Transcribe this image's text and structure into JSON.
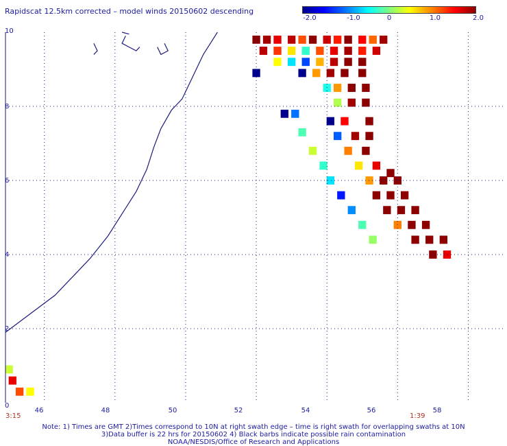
{
  "title": "Rapidscat 12.5km corrected – model winds 20150602 descending",
  "colorbar": {
    "labels": [
      "-2.0",
      "-1.0",
      "0",
      "1.0",
      "2.0"
    ],
    "min": -2.0,
    "max": 2.0
  },
  "axes": {
    "x_labels": [
      "46",
      "48",
      "50",
      "52",
      "54",
      "56",
      "58"
    ],
    "y_labels": [
      "0",
      "2",
      "4",
      "6",
      "8",
      "10"
    ],
    "x_range": [
      44.9,
      59.0
    ],
    "y_range": [
      0,
      10
    ]
  },
  "times": {
    "left": "3:15",
    "right": "1:39"
  },
  "notes": [
    "Note: 1) Times are GMT 2)Times correspond to 10N at right swath edge – time is right swath for overlapping swaths at 10N",
    "3)Data buffer is 22 hrs for 20150602 4) Black barbs indicate possible rain contamination",
    "NOAA/NESDIS/Office of Research and Applications"
  ],
  "colors": {
    "text": "#1a1aa0",
    "coast": "#1a1a80",
    "time": "#b03020"
  },
  "map_data": {
    "description_units": "lon (E), lat (N), value = wind speed difference",
    "swath_cells": [
      {
        "lon": 52.0,
        "lat": 9.8,
        "v": 2.0
      },
      {
        "lon": 52.3,
        "lat": 9.8,
        "v": 1.9
      },
      {
        "lon": 52.6,
        "lat": 9.8,
        "v": 1.6
      },
      {
        "lon": 53.0,
        "lat": 9.8,
        "v": 1.8
      },
      {
        "lon": 53.3,
        "lat": 9.8,
        "v": 1.2
      },
      {
        "lon": 53.6,
        "lat": 9.8,
        "v": 2.0
      },
      {
        "lon": 54.0,
        "lat": 9.8,
        "v": 1.7
      },
      {
        "lon": 54.3,
        "lat": 9.8,
        "v": 1.4
      },
      {
        "lon": 54.6,
        "lat": 9.8,
        "v": 2.0
      },
      {
        "lon": 55.0,
        "lat": 9.8,
        "v": 1.5
      },
      {
        "lon": 55.3,
        "lat": 9.8,
        "v": 1.1
      },
      {
        "lon": 55.6,
        "lat": 9.8,
        "v": 1.9
      },
      {
        "lon": 52.2,
        "lat": 9.5,
        "v": 1.8
      },
      {
        "lon": 52.6,
        "lat": 9.5,
        "v": 1.3
      },
      {
        "lon": 53.0,
        "lat": 9.5,
        "v": 0.6
      },
      {
        "lon": 53.4,
        "lat": 9.5,
        "v": -0.3
      },
      {
        "lon": 53.8,
        "lat": 9.5,
        "v": 1.2
      },
      {
        "lon": 54.2,
        "lat": 9.5,
        "v": 1.6
      },
      {
        "lon": 54.6,
        "lat": 9.5,
        "v": 1.9
      },
      {
        "lon": 55.0,
        "lat": 9.5,
        "v": 1.4
      },
      {
        "lon": 55.4,
        "lat": 9.5,
        "v": 1.7
      },
      {
        "lon": 52.6,
        "lat": 9.2,
        "v": 0.5
      },
      {
        "lon": 53.0,
        "lat": 9.2,
        "v": -0.6
      },
      {
        "lon": 53.4,
        "lat": 9.2,
        "v": -1.2
      },
      {
        "lon": 53.8,
        "lat": 9.2,
        "v": 0.8
      },
      {
        "lon": 54.2,
        "lat": 9.2,
        "v": 1.8
      },
      {
        "lon": 54.6,
        "lat": 9.2,
        "v": 2.0
      },
      {
        "lon": 55.0,
        "lat": 9.2,
        "v": 2.0
      },
      {
        "lon": 52.0,
        "lat": 8.9,
        "v": -2.0
      },
      {
        "lon": 53.3,
        "lat": 8.9,
        "v": -2.0
      },
      {
        "lon": 53.7,
        "lat": 8.9,
        "v": 0.9
      },
      {
        "lon": 54.1,
        "lat": 8.9,
        "v": 1.9
      },
      {
        "lon": 54.5,
        "lat": 8.9,
        "v": 2.0
      },
      {
        "lon": 55.0,
        "lat": 8.9,
        "v": 2.0
      },
      {
        "lon": 54.0,
        "lat": 8.5,
        "v": -0.4
      },
      {
        "lon": 54.3,
        "lat": 8.5,
        "v": 0.9
      },
      {
        "lon": 54.7,
        "lat": 8.5,
        "v": 2.0
      },
      {
        "lon": 55.1,
        "lat": 8.5,
        "v": 2.0
      },
      {
        "lon": 54.3,
        "lat": 8.1,
        "v": 0.2
      },
      {
        "lon": 54.7,
        "lat": 8.1,
        "v": 1.9
      },
      {
        "lon": 55.1,
        "lat": 8.1,
        "v": 2.0
      },
      {
        "lon": 52.8,
        "lat": 7.8,
        "v": -2.0
      },
      {
        "lon": 53.1,
        "lat": 7.8,
        "v": -1.0
      },
      {
        "lon": 54.1,
        "lat": 7.6,
        "v": -2.0
      },
      {
        "lon": 54.5,
        "lat": 7.6,
        "v": 1.5
      },
      {
        "lon": 55.2,
        "lat": 7.6,
        "v": 2.0
      },
      {
        "lon": 53.3,
        "lat": 7.3,
        "v": -0.2
      },
      {
        "lon": 54.3,
        "lat": 7.2,
        "v": -1.1
      },
      {
        "lon": 54.8,
        "lat": 7.2,
        "v": 1.9
      },
      {
        "lon": 55.2,
        "lat": 7.2,
        "v": 2.0
      },
      {
        "lon": 53.6,
        "lat": 6.8,
        "v": 0.3
      },
      {
        "lon": 54.6,
        "lat": 6.8,
        "v": 1.0
      },
      {
        "lon": 55.1,
        "lat": 6.8,
        "v": 2.0
      },
      {
        "lon": 53.9,
        "lat": 6.4,
        "v": -0.3
      },
      {
        "lon": 54.9,
        "lat": 6.4,
        "v": 0.6
      },
      {
        "lon": 55.4,
        "lat": 6.4,
        "v": 1.6
      },
      {
        "lon": 55.8,
        "lat": 6.2,
        "v": 2.0
      },
      {
        "lon": 54.1,
        "lat": 6.0,
        "v": -0.6
      },
      {
        "lon": 55.2,
        "lat": 6.0,
        "v": 0.9
      },
      {
        "lon": 55.6,
        "lat": 6.0,
        "v": 2.0
      },
      {
        "lon": 56.0,
        "lat": 6.0,
        "v": 2.0
      },
      {
        "lon": 54.4,
        "lat": 5.6,
        "v": -1.4
      },
      {
        "lon": 55.4,
        "lat": 5.6,
        "v": 2.0
      },
      {
        "lon": 55.8,
        "lat": 5.6,
        "v": 2.0
      },
      {
        "lon": 56.2,
        "lat": 5.6,
        "v": 2.0
      },
      {
        "lon": 54.7,
        "lat": 5.2,
        "v": -0.9
      },
      {
        "lon": 55.7,
        "lat": 5.2,
        "v": 2.0
      },
      {
        "lon": 56.1,
        "lat": 5.2,
        "v": 2.0
      },
      {
        "lon": 56.5,
        "lat": 5.2,
        "v": 2.0
      },
      {
        "lon": 55.0,
        "lat": 4.8,
        "v": -0.2
      },
      {
        "lon": 56.0,
        "lat": 4.8,
        "v": 1.0
      },
      {
        "lon": 56.4,
        "lat": 4.8,
        "v": 2.0
      },
      {
        "lon": 56.8,
        "lat": 4.8,
        "v": 2.0
      },
      {
        "lon": 55.3,
        "lat": 4.4,
        "v": 0.1
      },
      {
        "lon": 56.5,
        "lat": 4.4,
        "v": 2.0
      },
      {
        "lon": 56.9,
        "lat": 4.4,
        "v": 2.0
      },
      {
        "lon": 57.3,
        "lat": 4.4,
        "v": 2.0
      },
      {
        "lon": 57.0,
        "lat": 4.0,
        "v": 2.0
      },
      {
        "lon": 57.4,
        "lat": 4.0,
        "v": 1.6
      },
      {
        "lon": 45.0,
        "lat": 0.9,
        "v": 0.3
      },
      {
        "lon": 45.1,
        "lat": 0.6,
        "v": 1.6
      },
      {
        "lon": 45.3,
        "lat": 0.3,
        "v": 1.2
      },
      {
        "lon": 45.6,
        "lat": 0.3,
        "v": 0.5
      }
    ]
  }
}
